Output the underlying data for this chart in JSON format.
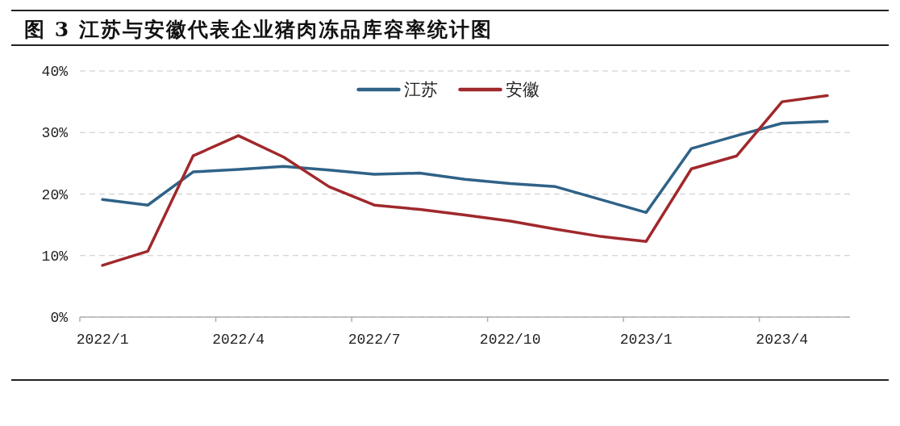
{
  "chart_data": {
    "type": "line",
    "title": "图 3 江苏与安徽代表企业猪肉冻品库容率统计图",
    "categories": [
      "2022/1",
      null,
      null,
      "2022/4",
      null,
      null,
      "2022/7",
      null,
      null,
      "2022/10",
      null,
      null,
      "2023/1",
      null,
      null,
      "2023/4",
      null
    ],
    "series": [
      {
        "name": "江苏",
        "color": "#2f6287",
        "values": [
          19.1,
          18.2,
          23.6,
          24.0,
          24.5,
          23.9,
          23.2,
          23.4,
          22.4,
          21.7,
          21.2,
          19.1,
          17.0,
          27.4,
          29.5,
          31.5,
          31.8
        ]
      },
      {
        "name": "安徽",
        "color": "#a0282c",
        "values": [
          8.4,
          10.7,
          26.2,
          29.5,
          26.0,
          21.2,
          18.2,
          17.5,
          16.6,
          15.6,
          14.3,
          13.1,
          12.3,
          24.1,
          26.2,
          35.0,
          36.0
        ]
      }
    ],
    "ylim": [
      0,
      40
    ],
    "yticks": [
      {
        "value": 0,
        "label": "0%"
      },
      {
        "value": 10,
        "label": "10%"
      },
      {
        "value": 20,
        "label": "20%"
      },
      {
        "value": 30,
        "label": "30%"
      },
      {
        "value": 40,
        "label": "40%"
      }
    ],
    "grid": "y",
    "legend": "top",
    "line_style": "solid"
  }
}
